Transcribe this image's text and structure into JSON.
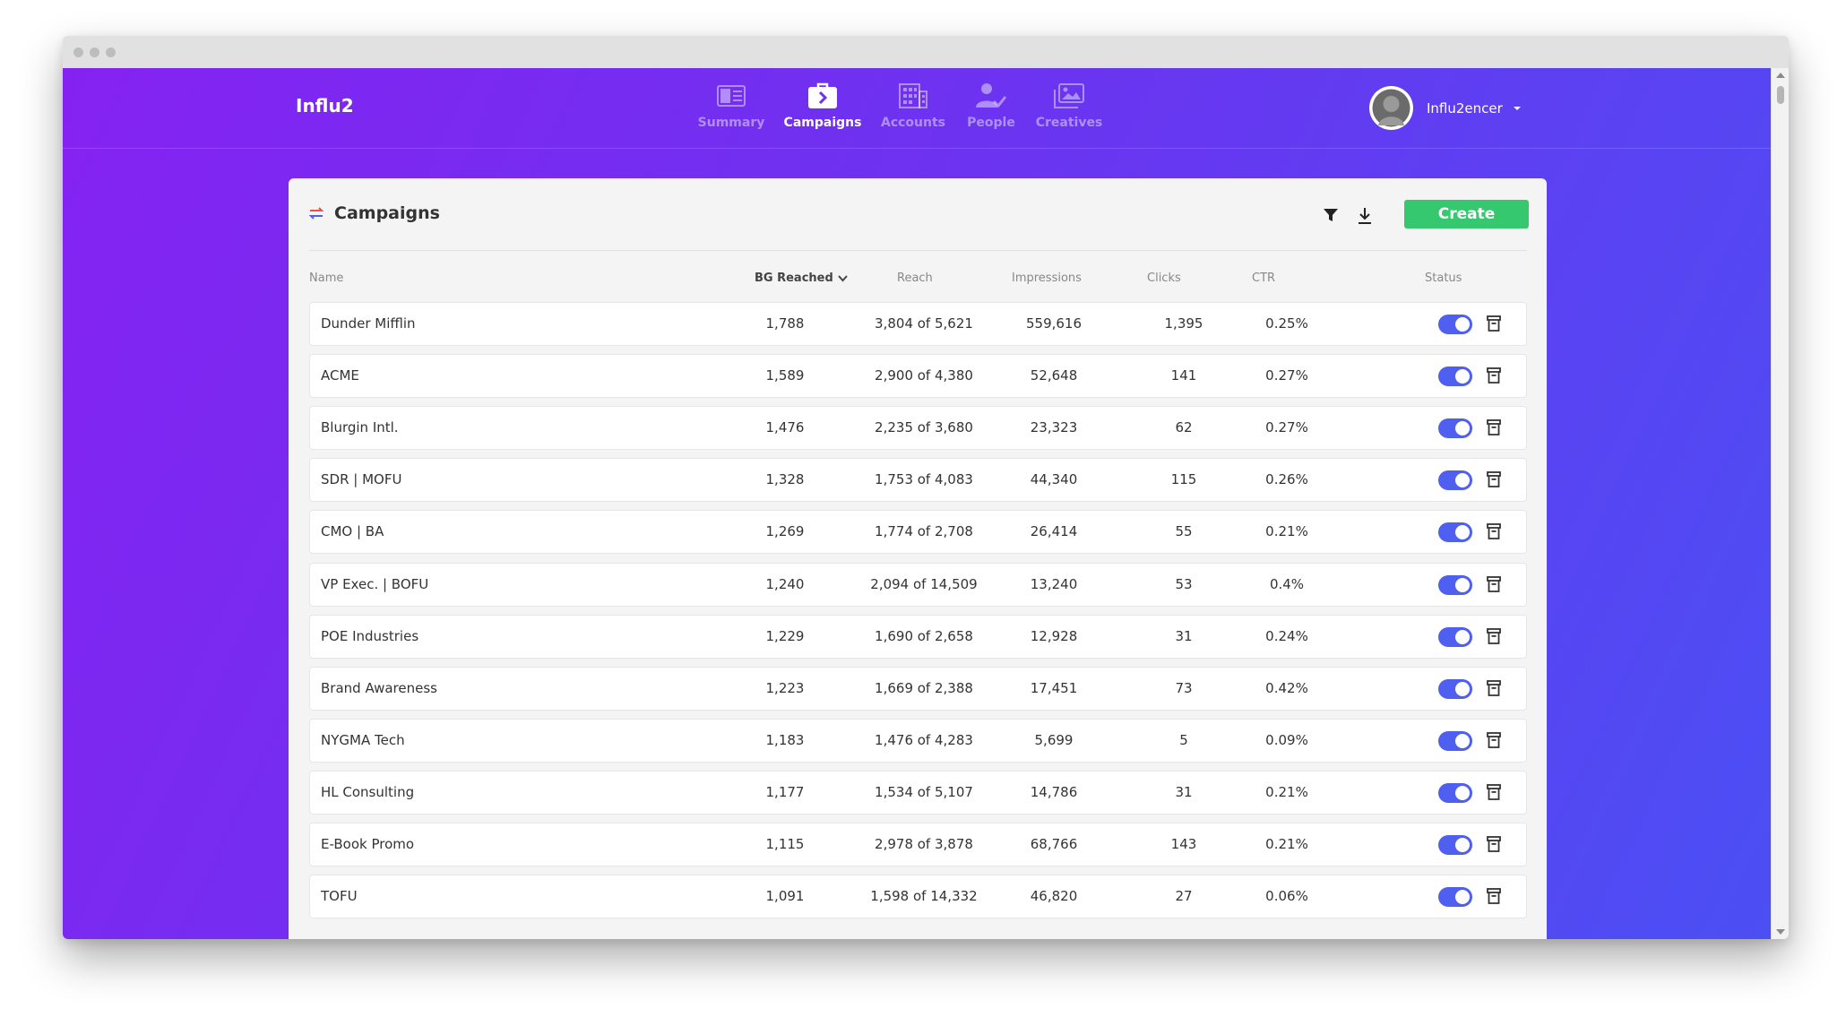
{
  "app": {
    "brand": "Influ2"
  },
  "nav": {
    "items": [
      {
        "label": "Summary",
        "icon": "summary-icon",
        "active": false
      },
      {
        "label": "Campaigns",
        "icon": "briefcase-icon",
        "active": true
      },
      {
        "label": "Accounts",
        "icon": "building-icon",
        "active": false
      },
      {
        "label": "People",
        "icon": "person-check-icon",
        "active": false
      },
      {
        "label": "Creatives",
        "icon": "images-icon",
        "active": false
      }
    ]
  },
  "user": {
    "name": "Influ2encer",
    "avatar": "avatar-silhouette"
  },
  "panel": {
    "title": "Campaigns",
    "create_label": "Create",
    "filter_icon": "filter-icon",
    "download_icon": "download-icon"
  },
  "table": {
    "columns": {
      "name": "Name",
      "bg_reached": "BG Reached",
      "reach": "Reach",
      "impressions": "Impressions",
      "clicks": "Clicks",
      "ctr": "CTR",
      "status": "Status"
    },
    "sorted_by": "BG Reached",
    "rows": [
      {
        "name": "Dunder Mifflin",
        "bg_reached": "1,788",
        "reach": "3,804 of 5,621",
        "impressions": "559,616",
        "clicks": "1,395",
        "ctr": "0.25%",
        "status_on": true
      },
      {
        "name": "ACME",
        "bg_reached": "1,589",
        "reach": "2,900 of 4,380",
        "impressions": "52,648",
        "clicks": "141",
        "ctr": "0.27%",
        "status_on": true
      },
      {
        "name": "Blurgin Intl.",
        "bg_reached": "1,476",
        "reach": "2,235 of 3,680",
        "impressions": "23,323",
        "clicks": "62",
        "ctr": "0.27%",
        "status_on": true
      },
      {
        "name": "SDR | MOFU",
        "bg_reached": "1,328",
        "reach": "1,753 of 4,083",
        "impressions": "44,340",
        "clicks": "115",
        "ctr": "0.26%",
        "status_on": true
      },
      {
        "name": "CMO | BA",
        "bg_reached": "1,269",
        "reach": "1,774 of 2,708",
        "impressions": "26,414",
        "clicks": "55",
        "ctr": "0.21%",
        "status_on": true
      },
      {
        "name": "VP Exec. | BOFU",
        "bg_reached": "1,240",
        "reach": "2,094 of 14,509",
        "impressions": "13,240",
        "clicks": "53",
        "ctr": "0.4%",
        "status_on": true
      },
      {
        "name": "POE Industries",
        "bg_reached": "1,229",
        "reach": "1,690 of 2,658",
        "impressions": "12,928",
        "clicks": "31",
        "ctr": "0.24%",
        "status_on": true
      },
      {
        "name": "Brand Awareness",
        "bg_reached": "1,223",
        "reach": "1,669 of 2,388",
        "impressions": "17,451",
        "clicks": "73",
        "ctr": "0.42%",
        "status_on": true
      },
      {
        "name": "NYGMA Tech",
        "bg_reached": "1,183",
        "reach": "1,476 of 4,283",
        "impressions": "5,699",
        "clicks": "5",
        "ctr": "0.09%",
        "status_on": true
      },
      {
        "name": "HL Consulting",
        "bg_reached": "1,177",
        "reach": "1,534 of 5,107",
        "impressions": "14,786",
        "clicks": "31",
        "ctr": "0.21%",
        "status_on": true
      },
      {
        "name": "E-Book Promo",
        "bg_reached": "1,115",
        "reach": "2,978 of 3,878",
        "impressions": "68,766",
        "clicks": "143",
        "ctr": "0.21%",
        "status_on": true
      },
      {
        "name": "TOFU",
        "bg_reached": "1,091",
        "reach": "1,598 of 14,332",
        "impressions": "46,820",
        "clicks": "27",
        "ctr": "0.06%",
        "status_on": true
      }
    ]
  },
  "colors": {
    "gradient_start": "#8522f2",
    "gradient_end": "#4b4ff4",
    "create_button": "#35c86f",
    "toggle_on": "#4f5ff0",
    "panel_bg": "#f4f4f4"
  }
}
